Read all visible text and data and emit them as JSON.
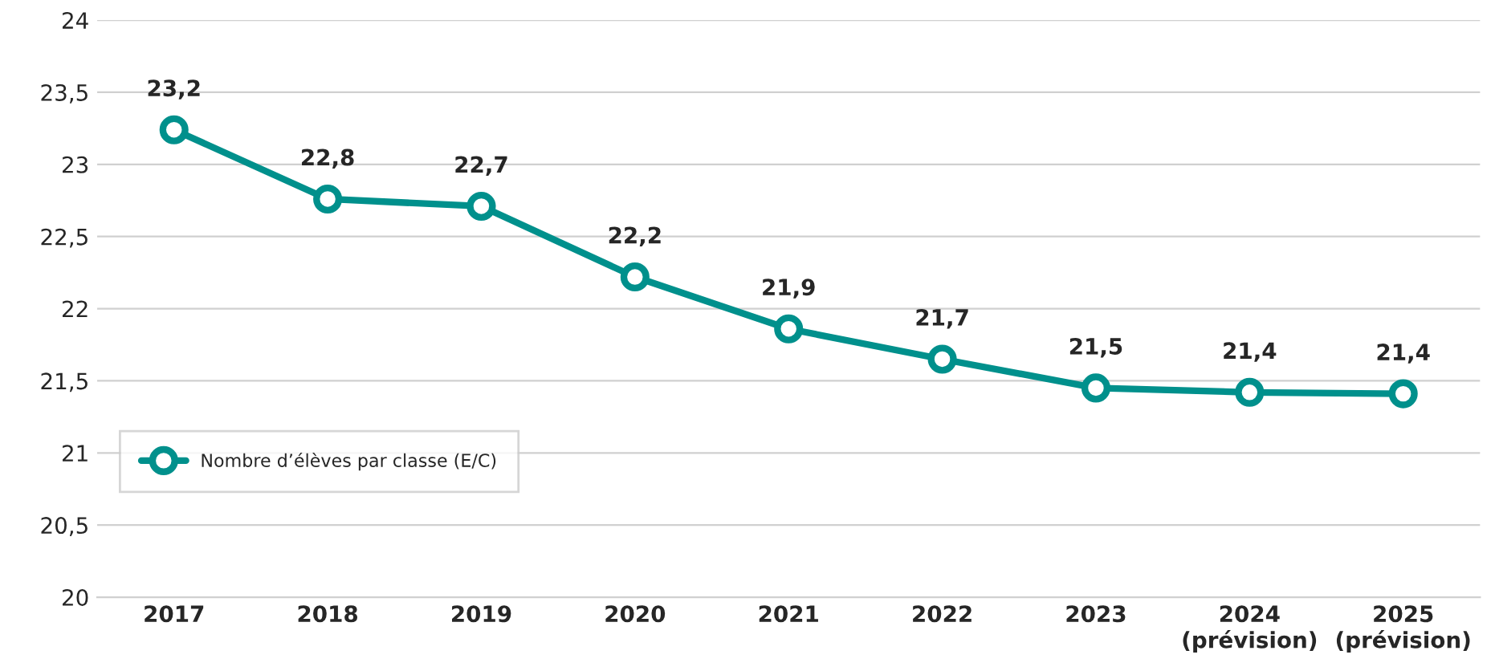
{
  "chart_data": {
    "type": "line",
    "categories": [
      "2017",
      "2018",
      "2019",
      "2020",
      "2021",
      "2022",
      "2023",
      "2024\n(prévision)",
      "2025\n(prévision)"
    ],
    "series": [
      {
        "name": "Nombre d’élèves par classe (E/C)",
        "color": "#00908c",
        "values": [
          23.24,
          22.76,
          22.71,
          22.22,
          21.86,
          21.65,
          21.45,
          21.42,
          21.41
        ],
        "value_labels": [
          "23,2",
          "22,8",
          "22,7",
          "22,2",
          "21,9",
          "21,7",
          "21,5",
          "21,4",
          "21,4"
        ]
      }
    ],
    "ylim": [
      20,
      24
    ],
    "yticks": [
      20,
      {
        "value": 20.5,
        "label": "20,5"
      },
      21,
      {
        "value": 21.5,
        "label": "21,5"
      },
      22,
      {
        "value": 22.5,
        "label": "22,5"
      },
      23,
      {
        "value": 23.5,
        "label": "23,5"
      },
      24
    ],
    "grid": "y",
    "legend": "left",
    "marker": "circle",
    "line_style": "solid"
  }
}
